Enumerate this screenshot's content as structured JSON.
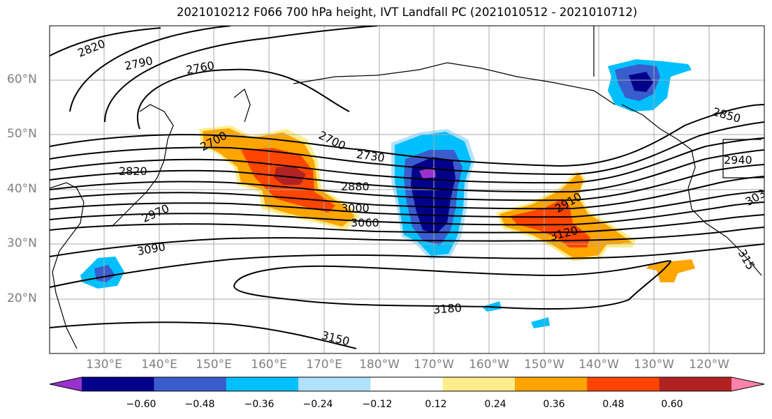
{
  "title": "2021010212 F066 700 hPa height, IVT Landfall PC (2021010512 - 2021010712)",
  "lat_labels": [
    "60°N",
    "50°N",
    "40°N",
    "30°N",
    "20°N"
  ],
  "lon_labels": [
    "130°E",
    "140°E",
    "150°E",
    "160°E",
    "170°E",
    "180°W",
    "170°W",
    "160°W",
    "150°W",
    "140°W",
    "130°W",
    "120°W"
  ],
  "contour_labels": [
    "2820",
    "2790",
    "2760",
    "2700",
    "2700",
    "2730",
    "2820",
    "2880",
    "2970",
    "3000",
    "3060",
    "3090",
    "2910",
    "3120",
    "2850",
    "2940",
    "303",
    "315",
    "3180",
    "3150"
  ],
  "colorbar": {
    "ticks": [
      "−0.60",
      "−0.48",
      "−0.36",
      "−0.24",
      "−0.12",
      "0.12",
      "0.24",
      "0.36",
      "0.48",
      "0.60"
    ],
    "colors": [
      "#9932cc",
      "#00008b",
      "#3a5ccc",
      "#00bfff",
      "#b0e2ff",
      "#ffffff",
      "#ffec8b",
      "#ffa500",
      "#ff4500",
      "#b22222",
      "#ff82ab"
    ]
  },
  "map_meta": {
    "variable": "700 hPa height, IVT Landfall PC",
    "lat_range": [
      10,
      70
    ],
    "lon_range": [
      120,
      250
    ]
  }
}
